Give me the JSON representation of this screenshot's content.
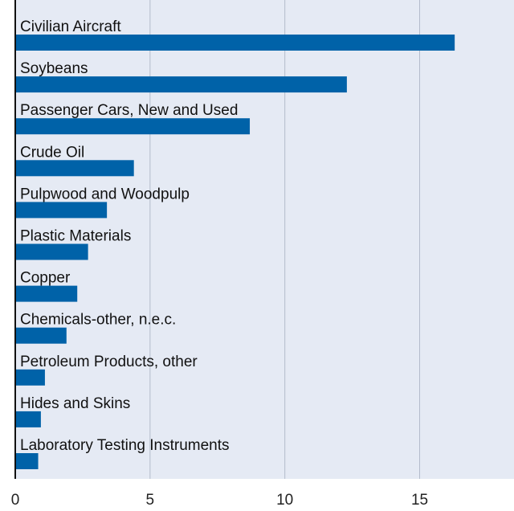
{
  "chart_data": {
    "type": "bar",
    "orientation": "horizontal",
    "categories": [
      "Civilian Aircraft",
      "Soybeans",
      "Passenger Cars, New and Used",
      "Crude Oil",
      "Pulpwood and Woodpulp",
      "Plastic Materials",
      "Copper",
      "Chemicals-other, n.e.c.",
      "Petroleum Products, other",
      "Hides and Skins",
      "Laboratory Testing Instruments"
    ],
    "values": [
      16.3,
      12.3,
      8.7,
      4.4,
      3.4,
      2.7,
      2.3,
      1.9,
      1.1,
      0.95,
      0.85
    ],
    "title": "",
    "xlabel": "",
    "ylabel": "",
    "xlim": [
      0,
      18.5
    ],
    "xticks": [
      "0",
      "5",
      "10",
      "15"
    ],
    "grid": true,
    "legend": "none",
    "colors": {
      "bar": "#0062a8",
      "plot_background": "#e5eaf4",
      "gridline": "#b3bccb",
      "axis": "#111111"
    }
  }
}
